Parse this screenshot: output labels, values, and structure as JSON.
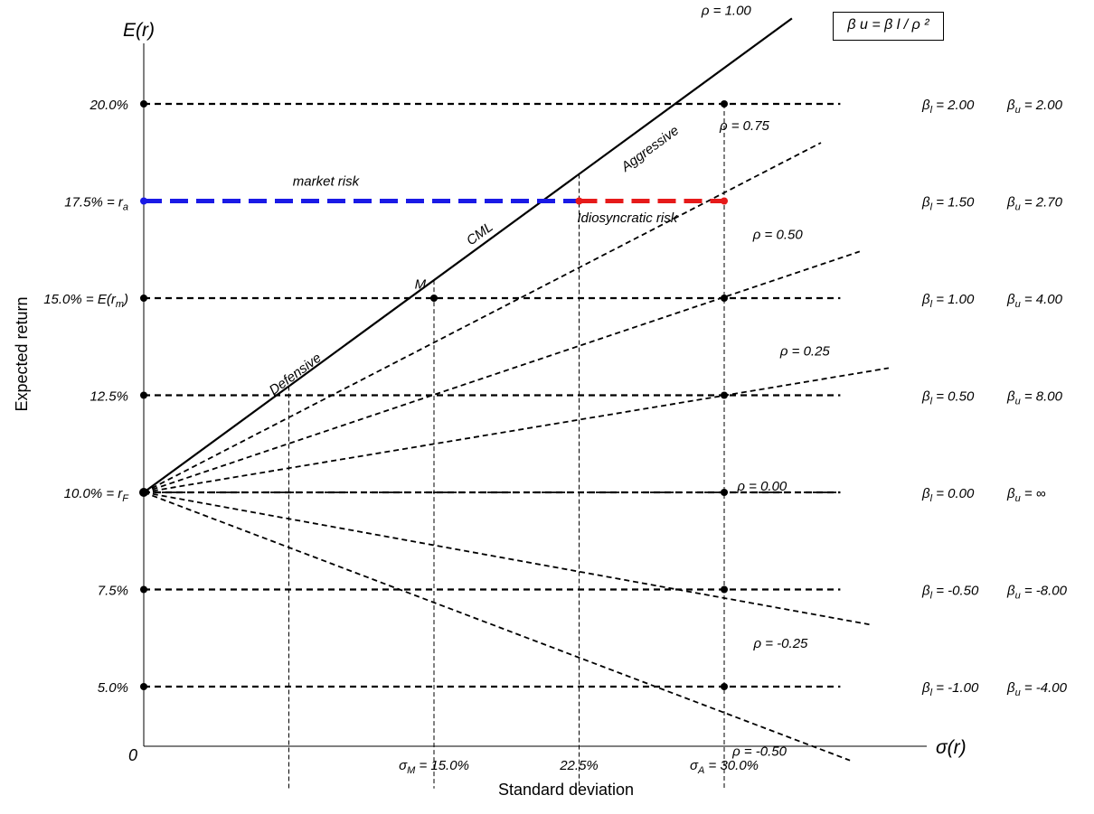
{
  "chart_data": {
    "type": "line",
    "ylabel": "Expected return",
    "xlabel": "Standard deviation",
    "y_axis_title": "E(r)",
    "x_axis_title": "σ(r)",
    "origin_label": "0",
    "formula": "β u = β l / ρ ²",
    "risk_free_rate": 10.0,
    "market_sigma": 15.0,
    "market_return": 15.0,
    "xlim": [
      0,
      36
    ],
    "ylim": [
      2.4,
      22.5
    ],
    "y_ticks": [
      {
        "value": 20.0,
        "label": "20.0%"
      },
      {
        "value": 17.5,
        "label": "17.5% = r a"
      },
      {
        "value": 15.0,
        "label": "15.0% = E(r m)"
      },
      {
        "value": 12.5,
        "label": "12.5%"
      },
      {
        "value": 10.0,
        "label": "10.0% = r F"
      },
      {
        "value": 7.5,
        "label": "7.5%"
      },
      {
        "value": 5.0,
        "label": "5.0%"
      }
    ],
    "x_ticks": [
      {
        "value": 15.0,
        "label": "σ M = 15.0%"
      },
      {
        "value": 22.5,
        "label": "22.5%"
      },
      {
        "value": 30.0,
        "label": "σ A = 30.0%"
      }
    ],
    "beta_rows": [
      {
        "y": 20.0,
        "beta_l": "β l = 2.00",
        "beta_u": "β u = 2.00"
      },
      {
        "y": 17.5,
        "beta_l": "β l = 1.50",
        "beta_u": "β u = 2.70"
      },
      {
        "y": 15.0,
        "beta_l": "β l = 1.00",
        "beta_u": "β u = 4.00"
      },
      {
        "y": 12.5,
        "beta_l": "β l = 0.50",
        "beta_u": "β u = 8.00"
      },
      {
        "y": 10.0,
        "beta_l": "β l = 0.00",
        "beta_u": "β u = ∞"
      },
      {
        "y": 7.5,
        "beta_l": "β l = -0.50",
        "beta_u": "β u = -8.00"
      },
      {
        "y": 5.0,
        "beta_l": "β l = -1.00",
        "beta_u": "β u = -4.00"
      }
    ],
    "series": [
      {
        "name": "ρ = 1.00",
        "rho": 1.0,
        "style": "solid",
        "x": [
          0,
          33.5
        ],
        "y": [
          10.0,
          22.2
        ]
      },
      {
        "name": "ρ = 0.75",
        "rho": 0.75,
        "style": "dashed",
        "x": [
          0,
          35.0
        ],
        "y": [
          10.0,
          19.0
        ]
      },
      {
        "name": "ρ = 0.50",
        "rho": 0.5,
        "style": "dashed",
        "x": [
          0,
          37.0
        ],
        "y": [
          10.0,
          16.2
        ]
      },
      {
        "name": "ρ = 0.25",
        "rho": 0.25,
        "style": "dashed",
        "x": [
          0,
          38.5
        ],
        "y": [
          10.0,
          13.2
        ]
      },
      {
        "name": "ρ = 0.00",
        "rho": 0.0,
        "style": "dashed",
        "x": [
          0,
          36.0
        ],
        "y": [
          10.0,
          10.0
        ]
      },
      {
        "name": "ρ = -0.25",
        "rho": -0.25,
        "style": "dashed",
        "x": [
          0,
          37.5
        ],
        "y": [
          10.0,
          6.6
        ]
      },
      {
        "name": "ρ = -0.50",
        "rho": -0.5,
        "style": "dashed",
        "x": [
          0,
          36.5
        ],
        "y": [
          10.0,
          3.1
        ]
      }
    ],
    "annotations": [
      {
        "text": "Aggressive",
        "x": 24.9,
        "y": 18.25
      },
      {
        "text": "CML",
        "x": 16.9,
        "y": 16.35
      },
      {
        "text": "M",
        "x": 14.0,
        "y": 15.25
      },
      {
        "text": "Defensive",
        "x": 6.7,
        "y": 12.5
      },
      {
        "text": "market risk",
        "x": 7.7,
        "y": 17.9
      },
      {
        "text": "Idiosyncratic risk",
        "x": 22.4,
        "y": 16.95
      }
    ],
    "market_risk_segment": {
      "x": [
        0,
        22.5
      ],
      "y": 17.5,
      "color": "#1a1ae6"
    },
    "idiosyncratic_risk_segment": {
      "x": [
        22.5,
        30.0
      ],
      "y": 17.5,
      "color": "#e61a1a"
    },
    "vertical_guides": [
      7.5,
      15.0,
      22.5,
      30.0
    ],
    "grid": false
  }
}
